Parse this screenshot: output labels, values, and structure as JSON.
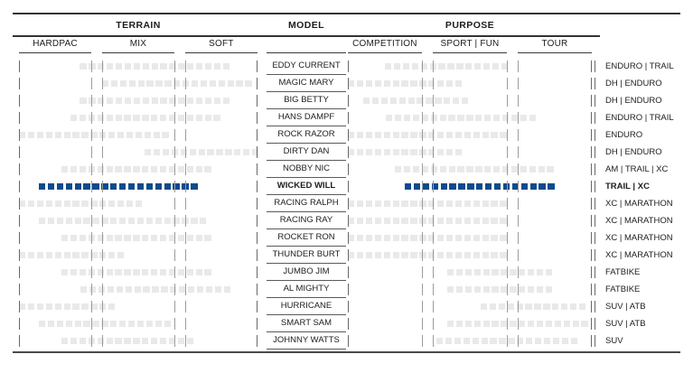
{
  "header": {
    "terrain": {
      "label": "TERRAIN",
      "columns": [
        "HARDPAC",
        "MIX",
        "SOFT"
      ]
    },
    "model": {
      "label": "MODEL"
    },
    "purpose": {
      "label": "PURPOSE",
      "columns": [
        "COMPETITION",
        "SPORT | FUN",
        "TOUR"
      ]
    }
  },
  "colors": {
    "highlight_blue": "#0d4b8c",
    "bar_gray": "#e9e9e9",
    "tick_gray": "#9c9c9c",
    "line_dark": "#333333"
  },
  "chart_data": {
    "type": "range-bar",
    "column_groups": {
      "terrain": [
        "HARDPAC",
        "MIX",
        "SOFT"
      ],
      "purpose": [
        "COMPETITION",
        "SPORT | FUN",
        "TOUR"
      ]
    },
    "range_scale": "percent of full three-column span (0-100); column boundary ticks at 0, 30.3, 34.8, 65.2, 69.7, 100",
    "rows": [
      {
        "model": "EDDY CURRENT",
        "category": "ENDURO | TRAIL",
        "terrain": [
          25.5,
          89.5
        ],
        "purpose": [
          15.2,
          65.9
        ],
        "highlight": false
      },
      {
        "model": "MAGIC MARY",
        "category": "DH | ENDURO",
        "terrain": [
          34.8,
          100
        ],
        "purpose": [
          0,
          48.9
        ],
        "highlight": false
      },
      {
        "model": "BIG BETTY",
        "category": "DH | ENDURO",
        "terrain": [
          25.5,
          89.5
        ],
        "purpose": [
          6.3,
          51.9
        ],
        "highlight": false
      },
      {
        "model": "HANS DAMPF",
        "category": "ENDURO | TRAIL",
        "terrain": [
          21.6,
          86.0
        ],
        "purpose": [
          15.6,
          78.5
        ],
        "highlight": false
      },
      {
        "model": "ROCK RAZOR",
        "category": "ENDURO",
        "terrain": [
          0,
          65.2
        ],
        "purpose": [
          0,
          65.9
        ],
        "highlight": false
      },
      {
        "model": "DIRTY DAN",
        "category": "DH | ENDURO",
        "terrain": [
          52.7,
          100
        ],
        "purpose": [
          0,
          48.9
        ],
        "highlight": false
      },
      {
        "model": "NOBBY NIC",
        "category": "AM | TRAIL | XC",
        "terrain": [
          17.8,
          82.6
        ],
        "purpose": [
          19.3,
          84.4
        ],
        "highlight": false
      },
      {
        "model": "WICKED WILL",
        "category": "TRAIL | XC",
        "terrain": [
          8.3,
          78.0
        ],
        "purpose": [
          23.3,
          86.7
        ],
        "highlight": true
      },
      {
        "model": "RACING RALPH",
        "category": "XC | MARATHON",
        "terrain": [
          0,
          52.7
        ],
        "purpose": [
          0,
          65.9
        ],
        "highlight": false
      },
      {
        "model": "RACING RAY",
        "category": "XC | MARATHON",
        "terrain": [
          8.3,
          78.3
        ],
        "purpose": [
          0,
          65.9
        ],
        "highlight": false
      },
      {
        "model": "ROCKET RON",
        "category": "XC | MARATHON",
        "terrain": [
          17.8,
          82.1
        ],
        "purpose": [
          0,
          65.9
        ],
        "highlight": false
      },
      {
        "model": "THUNDER BURT",
        "category": "XC | MARATHON",
        "terrain": [
          0,
          46.2
        ],
        "purpose": [
          0,
          65.9
        ],
        "highlight": false
      },
      {
        "model": "JUMBO JIM",
        "category": "FATBIKE",
        "terrain": [
          17.8,
          82.2
        ],
        "purpose": [
          40.7,
          83.3
        ],
        "highlight": false
      },
      {
        "model": "AL MIGHTY",
        "category": "FATBIKE",
        "terrain": [
          25.8,
          91.7
        ],
        "purpose": [
          40.7,
          83.3
        ],
        "highlight": false
      },
      {
        "model": "HURRICANE",
        "category": "SUV | ATB",
        "terrain": [
          0,
          42.4
        ],
        "purpose": [
          54.4,
          100
        ],
        "highlight": false
      },
      {
        "model": "SMART SAM",
        "category": "SUV | ATB",
        "terrain": [
          8.3,
          65.2
        ],
        "purpose": [
          40.7,
          100
        ],
        "highlight": false
      },
      {
        "model": "JOHNNY WATTS",
        "category": "SUV",
        "terrain": [
          17.8,
          72.7
        ],
        "purpose": [
          36.3,
          95.2
        ],
        "highlight": false
      }
    ]
  }
}
